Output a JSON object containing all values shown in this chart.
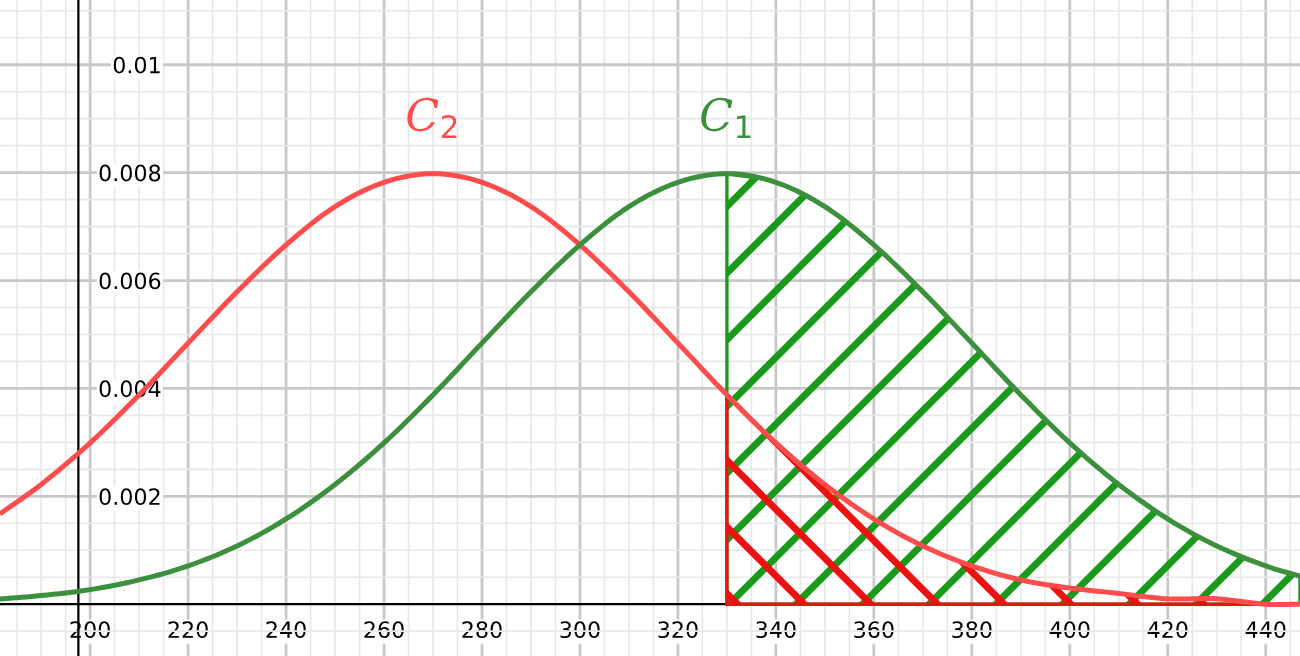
{
  "chart_data": {
    "type": "line",
    "xlim": [
      181.6,
      447
    ],
    "ylim": [
      -0.00096,
      0.0112
    ],
    "xticks": [
      200,
      220,
      240,
      260,
      280,
      300,
      320,
      340,
      360,
      380,
      400,
      420,
      440
    ],
    "yticks": [
      0.002,
      0.004,
      0.006,
      0.008,
      0.01
    ],
    "grid": true,
    "marker": "none",
    "line_style": "solid",
    "series": [
      {
        "name": "C$_{2}$",
        "color": "#ff4d4d",
        "x": [
          182,
          190,
          200,
          210,
          220,
          230,
          240,
          250,
          260,
          270,
          280,
          290,
          300,
          310,
          320,
          330,
          340,
          350,
          360,
          370,
          380,
          390,
          400,
          410,
          420,
          430,
          440,
          447
        ],
        "values": [
          0.0017,
          0.00222,
          0.00299,
          0.00388,
          0.00484,
          0.00579,
          0.00666,
          0.00737,
          0.00782,
          0.00798,
          0.00782,
          0.00737,
          0.00666,
          0.00579,
          0.00484,
          0.00388,
          0.00299,
          0.00222,
          0.00158,
          0.00108,
          0.00071,
          0.00045,
          0.0003,
          0.0002,
          0.0001,
          0.0001,
          0,
          0
        ]
      },
      {
        "name": "C$_{1}$",
        "color": "#3c8f3c",
        "x": [
          182,
          190,
          200,
          210,
          220,
          230,
          240,
          250,
          260,
          270,
          280,
          290,
          300,
          310,
          320,
          330,
          340,
          350,
          360,
          370,
          380,
          390,
          400,
          410,
          420,
          430,
          440,
          447
        ],
        "values": [
          0.0001,
          0.00016,
          0.00027,
          0.00045,
          0.00071,
          0.00108,
          0.00158,
          0.00222,
          0.00299,
          0.00388,
          0.00484,
          0.00579,
          0.00666,
          0.00737,
          0.00782,
          0.00798,
          0.00782,
          0.00737,
          0.00666,
          0.00579,
          0.00484,
          0.00388,
          0.00299,
          0.00222,
          0.00158,
          0.00108,
          0.00071,
          0.00052
        ]
      },
      {
        "color": "#1a9a1a",
        "type": "area",
        "x": [
          330,
          340,
          350,
          360,
          370,
          380,
          390,
          400,
          410,
          420,
          430,
          440,
          447
        ],
        "values": [
          0.00798,
          0.00782,
          0.00737,
          0.00666,
          0.00579,
          0.00484,
          0.00388,
          0.00299,
          0.00222,
          0.00158,
          0.00108,
          0.00071,
          0.00052
        ]
      },
      {
        "color": "#ee1111",
        "type": "area",
        "x": [
          330,
          340,
          350,
          360,
          370,
          380,
          390,
          400,
          410,
          420,
          430,
          440,
          447
        ],
        "values": [
          0.00388,
          0.00299,
          0.00222,
          0.00158,
          0.00108,
          0.00071,
          0.00045,
          0.0003,
          0.0002,
          0.0001,
          0.0001,
          0,
          0
        ]
      }
    ]
  }
}
